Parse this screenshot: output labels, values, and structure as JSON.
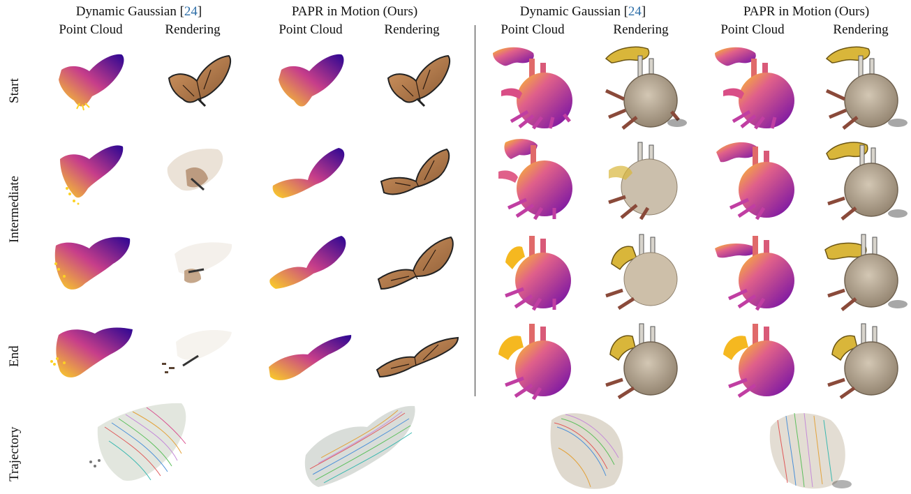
{
  "headers": {
    "left_dg": {
      "label": "Dynamic Gaussian [",
      "cite": "24",
      "end": "]"
    },
    "left_papr": {
      "label": "PAPR in Motion (Ours)"
    },
    "right_dg": {
      "label": "Dynamic Gaussian [",
      "cite": "24",
      "end": "]"
    },
    "right_papr": {
      "label": "PAPR in Motion (Ours)"
    }
  },
  "subheaders": {
    "point_cloud": "Point Cloud",
    "rendering": "Rendering"
  },
  "rows": [
    "Start",
    "Intermediate",
    "End",
    "Trajectory"
  ],
  "colors": {
    "plasma_dark": "#2a0593",
    "plasma_mid": "#c73e8a",
    "plasma_light": "#fcd225",
    "wing_orange": "#c07a45",
    "shell": "#b8ab98",
    "claw": "#d9b63a",
    "leg": "#8a4a3a",
    "divider": "#333333",
    "cite": "#2f6fa8"
  }
}
